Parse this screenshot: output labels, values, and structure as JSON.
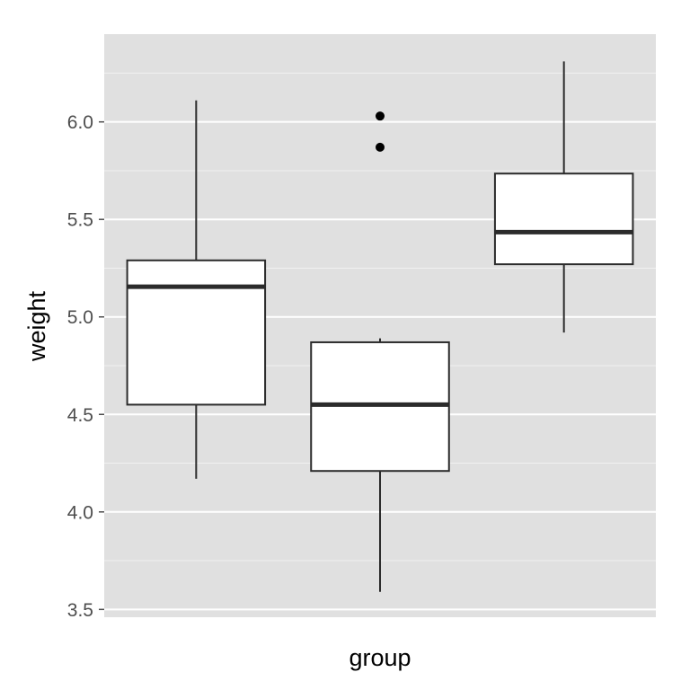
{
  "chart_data": {
    "type": "boxplot",
    "xlabel": "group",
    "ylabel": "weight",
    "ylim": [
      3.46,
      6.45
    ],
    "y_ticks": [
      3.5,
      4.0,
      4.5,
      5.0,
      5.5,
      6.0
    ],
    "y_tick_labels": [
      "3.5",
      "4.0",
      "4.5",
      "5.0",
      "5.5",
      "6.0"
    ],
    "x_tick_labels_shown": false,
    "grid": true,
    "theme": {
      "panel_background": "#e0e0e0",
      "grid_color": "#ffffff",
      "box_fill": "#ffffff",
      "box_line": "#2b2b2b"
    },
    "boxes": [
      {
        "lower_whisker": 4.17,
        "q1": 4.55,
        "median": 5.155,
        "q3": 5.29,
        "upper_whisker": 6.11,
        "outliers": []
      },
      {
        "lower_whisker": 3.59,
        "q1": 4.21,
        "median": 4.55,
        "q3": 4.87,
        "upper_whisker": 4.89,
        "outliers": [
          5.87,
          6.03
        ]
      },
      {
        "lower_whisker": 4.92,
        "q1": 5.27,
        "median": 5.435,
        "q3": 5.735,
        "upper_whisker": 6.31,
        "outliers": []
      }
    ]
  }
}
